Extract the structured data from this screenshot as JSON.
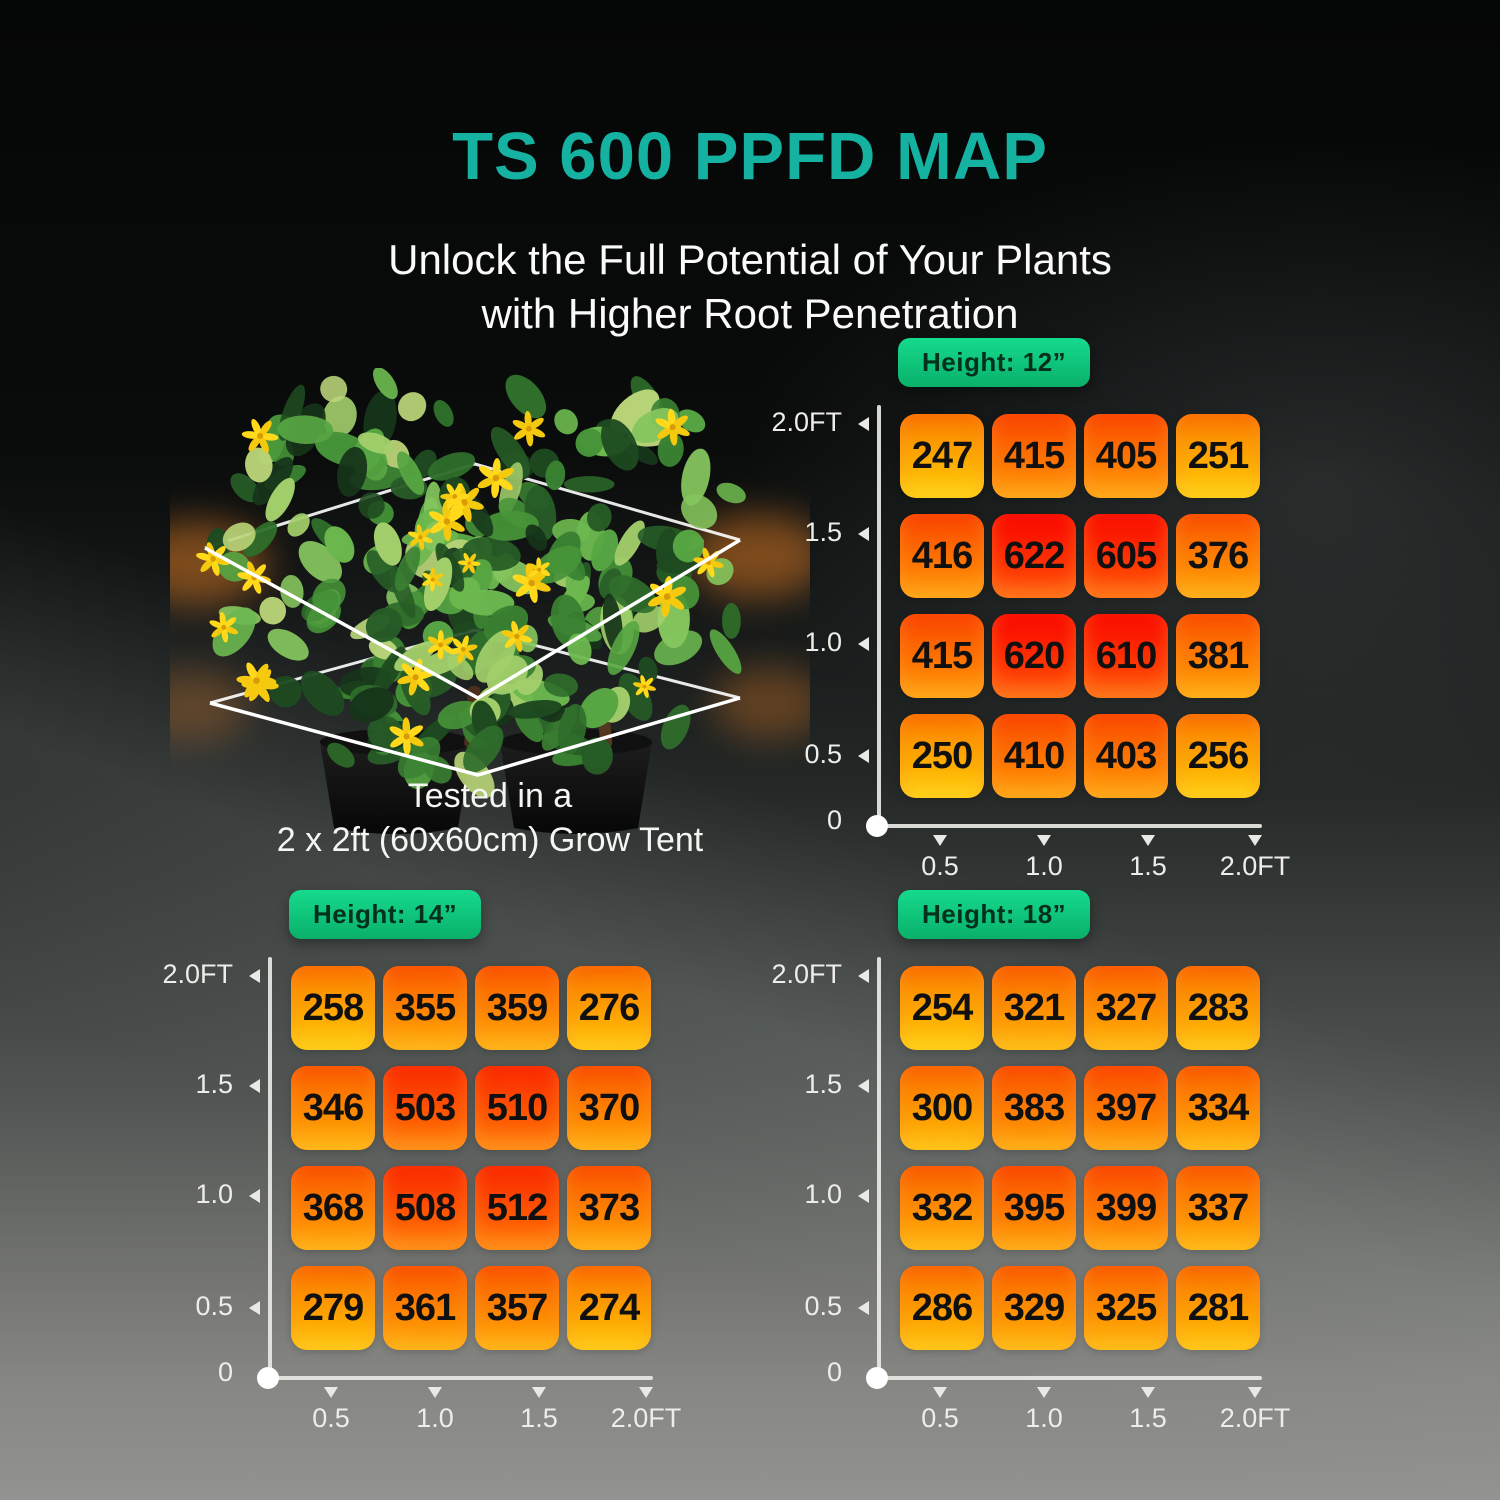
{
  "title": "TS 600 PPFD MAP",
  "subtitle": {
    "line1": "Unlock the Full Potential of Your Plants",
    "line2": "with Higher Root Penetration"
  },
  "plant_caption": {
    "line1": "Tested in a",
    "line2": "2 x 2ft (60x60cm) Grow Tent"
  },
  "chart_data": [
    {
      "type": "heatmap",
      "label": "Height: 12”",
      "position": "top-right",
      "x_labels": [
        "0.5",
        "1.0",
        "1.5",
        "2.0FT"
      ],
      "y_labels": [
        "2.0FT",
        "1.5",
        "1.0",
        "0.5",
        "0"
      ],
      "values": [
        [
          247,
          415,
          405,
          251
        ],
        [
          416,
          622,
          605,
          376
        ],
        [
          415,
          620,
          610,
          381
        ],
        [
          250,
          410,
          403,
          256
        ]
      ]
    },
    {
      "type": "heatmap",
      "label": "Height: 14”",
      "position": "bottom-left",
      "x_labels": [
        "0.5",
        "1.0",
        "1.5",
        "2.0FT"
      ],
      "y_labels": [
        "2.0FT",
        "1.5",
        "1.0",
        "0.5",
        "0"
      ],
      "values": [
        [
          258,
          355,
          359,
          276
        ],
        [
          346,
          503,
          510,
          370
        ],
        [
          368,
          508,
          512,
          373
        ],
        [
          279,
          361,
          357,
          274
        ]
      ]
    },
    {
      "type": "heatmap",
      "label": "Height: 18”",
      "position": "bottom-right",
      "x_labels": [
        "0.5",
        "1.0",
        "1.5",
        "2.0FT"
      ],
      "y_labels": [
        "2.0FT",
        "1.5",
        "1.0",
        "0.5",
        "0"
      ],
      "values": [
        [
          254,
          321,
          327,
          283
        ],
        [
          300,
          383,
          397,
          334
        ],
        [
          332,
          395,
          399,
          337
        ],
        [
          286,
          329,
          325,
          281
        ]
      ]
    }
  ],
  "colors": {
    "title": "#16b2a1",
    "subtitle_text": "#fafaf8",
    "badge_gradient_top": "#15da8d",
    "badge_gradient_bottom": "#0ab06a",
    "badge_text": "#06301e",
    "axis": "#e9e9e6",
    "cell_value_text": "#101010",
    "heat_scale_min": 240,
    "heat_scale_max": 630
  }
}
